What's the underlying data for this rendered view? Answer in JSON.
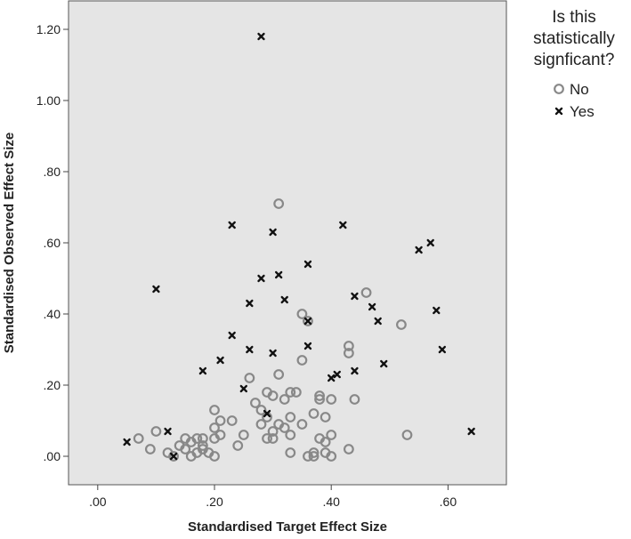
{
  "chart_data": {
    "type": "scatter",
    "xlabel": "Standardised Target Effect Size",
    "ylabel": "Standardised Observed Effect Size",
    "xlim": [
      -0.05,
      0.7
    ],
    "ylim": [
      -0.08,
      1.28
    ],
    "x_ticks": [
      0.0,
      0.2,
      0.4,
      0.6
    ],
    "x_tick_labels": [
      ".00",
      ".20",
      ".40",
      ".60"
    ],
    "y_ticks": [
      0.0,
      0.2,
      0.4,
      0.6,
      0.8,
      1.0,
      1.2
    ],
    "y_tick_labels": [
      ".00",
      ".20",
      ".40",
      ".60",
      ".80",
      "1.00",
      "1.20"
    ],
    "grid": false,
    "background": "#e5e5e5",
    "legend": {
      "title": "Is this statistically signficant?",
      "title_lines": [
        "Is this",
        "statistically",
        "signficant?"
      ],
      "placement": "right"
    },
    "series": [
      {
        "name": "No",
        "marker": "circle",
        "color": "#888888",
        "points": [
          [
            0.07,
            0.05
          ],
          [
            0.09,
            0.02
          ],
          [
            0.1,
            0.07
          ],
          [
            0.12,
            0.01
          ],
          [
            0.13,
            0.0
          ],
          [
            0.14,
            0.03
          ],
          [
            0.15,
            0.02
          ],
          [
            0.15,
            0.05
          ],
          [
            0.16,
            0.0
          ],
          [
            0.16,
            0.04
          ],
          [
            0.17,
            0.01
          ],
          [
            0.17,
            0.05
          ],
          [
            0.18,
            0.02
          ],
          [
            0.18,
            0.05
          ],
          [
            0.18,
            0.03
          ],
          [
            0.19,
            0.01
          ],
          [
            0.2,
            0.0
          ],
          [
            0.2,
            0.13
          ],
          [
            0.2,
            0.05
          ],
          [
            0.2,
            0.08
          ],
          [
            0.21,
            0.1
          ],
          [
            0.21,
            0.06
          ],
          [
            0.23,
            0.1
          ],
          [
            0.24,
            0.03
          ],
          [
            0.25,
            0.06
          ],
          [
            0.26,
            0.22
          ],
          [
            0.27,
            0.15
          ],
          [
            0.28,
            0.13
          ],
          [
            0.28,
            0.09
          ],
          [
            0.29,
            0.05
          ],
          [
            0.29,
            0.18
          ],
          [
            0.29,
            0.11
          ],
          [
            0.3,
            0.17
          ],
          [
            0.3,
            0.07
          ],
          [
            0.3,
            0.05
          ],
          [
            0.31,
            0.71
          ],
          [
            0.31,
            0.23
          ],
          [
            0.31,
            0.09
          ],
          [
            0.32,
            0.16
          ],
          [
            0.32,
            0.08
          ],
          [
            0.33,
            0.18
          ],
          [
            0.33,
            0.11
          ],
          [
            0.33,
            0.01
          ],
          [
            0.33,
            0.06
          ],
          [
            0.34,
            0.18
          ],
          [
            0.35,
            0.4
          ],
          [
            0.35,
            0.27
          ],
          [
            0.35,
            0.09
          ],
          [
            0.36,
            0.0
          ],
          [
            0.36,
            0.38
          ],
          [
            0.37,
            0.12
          ],
          [
            0.37,
            0.0
          ],
          [
            0.37,
            0.01
          ],
          [
            0.38,
            0.16
          ],
          [
            0.38,
            0.17
          ],
          [
            0.38,
            0.05
          ],
          [
            0.39,
            0.01
          ],
          [
            0.39,
            0.11
          ],
          [
            0.39,
            0.04
          ],
          [
            0.4,
            0.16
          ],
          [
            0.4,
            0.06
          ],
          [
            0.4,
            0.0
          ],
          [
            0.43,
            0.31
          ],
          [
            0.43,
            0.29
          ],
          [
            0.43,
            0.02
          ],
          [
            0.44,
            0.16
          ],
          [
            0.46,
            0.46
          ],
          [
            0.52,
            0.37
          ],
          [
            0.53,
            0.06
          ]
        ]
      },
      {
        "name": "Yes",
        "marker": "x",
        "color": "#111111",
        "points": [
          [
            0.05,
            0.04
          ],
          [
            0.1,
            0.47
          ],
          [
            0.12,
            0.07
          ],
          [
            0.13,
            0.0
          ],
          [
            0.18,
            0.24
          ],
          [
            0.21,
            0.27
          ],
          [
            0.23,
            0.65
          ],
          [
            0.23,
            0.34
          ],
          [
            0.25,
            0.19
          ],
          [
            0.26,
            0.43
          ],
          [
            0.26,
            0.3
          ],
          [
            0.28,
            1.18
          ],
          [
            0.28,
            0.5
          ],
          [
            0.29,
            0.12
          ],
          [
            0.3,
            0.63
          ],
          [
            0.3,
            0.29
          ],
          [
            0.31,
            0.51
          ],
          [
            0.32,
            0.44
          ],
          [
            0.36,
            0.54
          ],
          [
            0.36,
            0.38
          ],
          [
            0.36,
            0.31
          ],
          [
            0.4,
            0.22
          ],
          [
            0.41,
            0.23
          ],
          [
            0.42,
            0.65
          ],
          [
            0.44,
            0.45
          ],
          [
            0.44,
            0.24
          ],
          [
            0.47,
            0.42
          ],
          [
            0.48,
            0.38
          ],
          [
            0.49,
            0.26
          ],
          [
            0.55,
            0.58
          ],
          [
            0.57,
            0.6
          ],
          [
            0.58,
            0.41
          ],
          [
            0.59,
            0.3
          ],
          [
            0.64,
            0.07
          ]
        ]
      }
    ]
  }
}
